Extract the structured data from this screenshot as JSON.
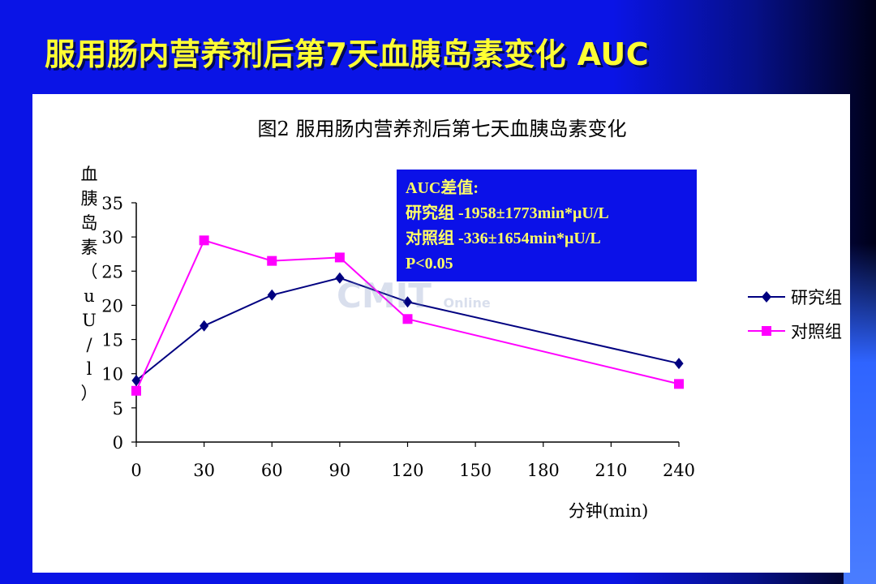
{
  "slide": {
    "title": "服用肠内营养剂后第7天血胰岛素变化 AUC",
    "colors": {
      "background": "#0a14e6",
      "title": "#ffff33",
      "panel": "#ffffff"
    }
  },
  "watermark": {
    "text": "CMIT",
    "sub": "Online"
  },
  "auc_box": {
    "lines": [
      "AUC差值:",
      "研究组 -1958±1773min*μU/L",
      "对照组 -336±1654min*μU/L",
      "P<0.05"
    ],
    "colors": {
      "background": "#0b11e8",
      "text": "#ffff66"
    }
  },
  "chart_data": {
    "type": "line",
    "title": "图2  服用肠内营养剂后第七天血胰岛素变化",
    "xlabel": "分钟(min)",
    "ylabel": "血胰岛素（uU/l）",
    "x": [
      0,
      30,
      60,
      90,
      120,
      240
    ],
    "xticks": [
      0,
      30,
      60,
      90,
      120,
      150,
      180,
      210,
      240
    ],
    "yticks": [
      0,
      5,
      10,
      15,
      20,
      25,
      30,
      35
    ],
    "xlim": [
      0,
      240
    ],
    "ylim": [
      0,
      35
    ],
    "grid": false,
    "legend_position": "right",
    "series": [
      {
        "name": "研究组",
        "values": [
          9.0,
          17.0,
          21.5,
          24.0,
          20.5,
          11.5
        ],
        "color": "#000080",
        "marker": "diamond"
      },
      {
        "name": "对照组",
        "values": [
          7.5,
          29.5,
          26.5,
          27.0,
          18.0,
          8.5
        ],
        "color": "#ff00ff",
        "marker": "square"
      }
    ]
  }
}
